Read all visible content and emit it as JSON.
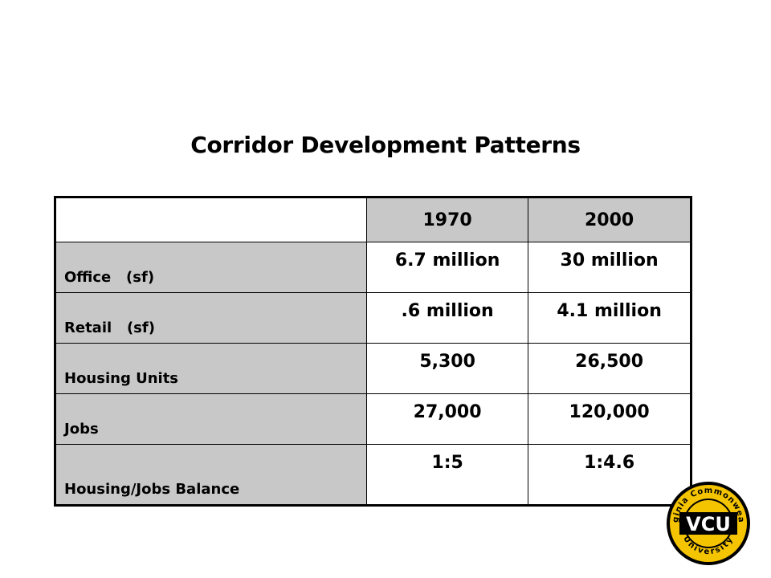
{
  "title": "Corridor Development Patterns",
  "table": {
    "columns": [
      "",
      "1970",
      "2000"
    ],
    "rows": [
      {
        "label": "Office   (sf)",
        "v1970": "6.7 million",
        "v2000": "30 million"
      },
      {
        "label": "Retail   (sf)",
        "v1970": ".6 million",
        "v2000": "4.1 million"
      },
      {
        "label": "Housing Units",
        "v1970": "5,300",
        "v2000": "26,500"
      },
      {
        "label": "Jobs",
        "v1970": "27,000",
        "v2000": "120,000"
      },
      {
        "label": "Housing/Jobs Balance",
        "v1970": "1:5",
        "v2000": "1:4.6"
      }
    ]
  },
  "logo": {
    "center_text": "VCU",
    "ring_top": "Virginia Commonwealth",
    "ring_bottom": "University",
    "colors": {
      "gold": "#f5c400",
      "black": "#000000",
      "white": "#ffffff"
    }
  },
  "colors": {
    "header_fill": "#c8c8c8",
    "background": "#ffffff"
  }
}
